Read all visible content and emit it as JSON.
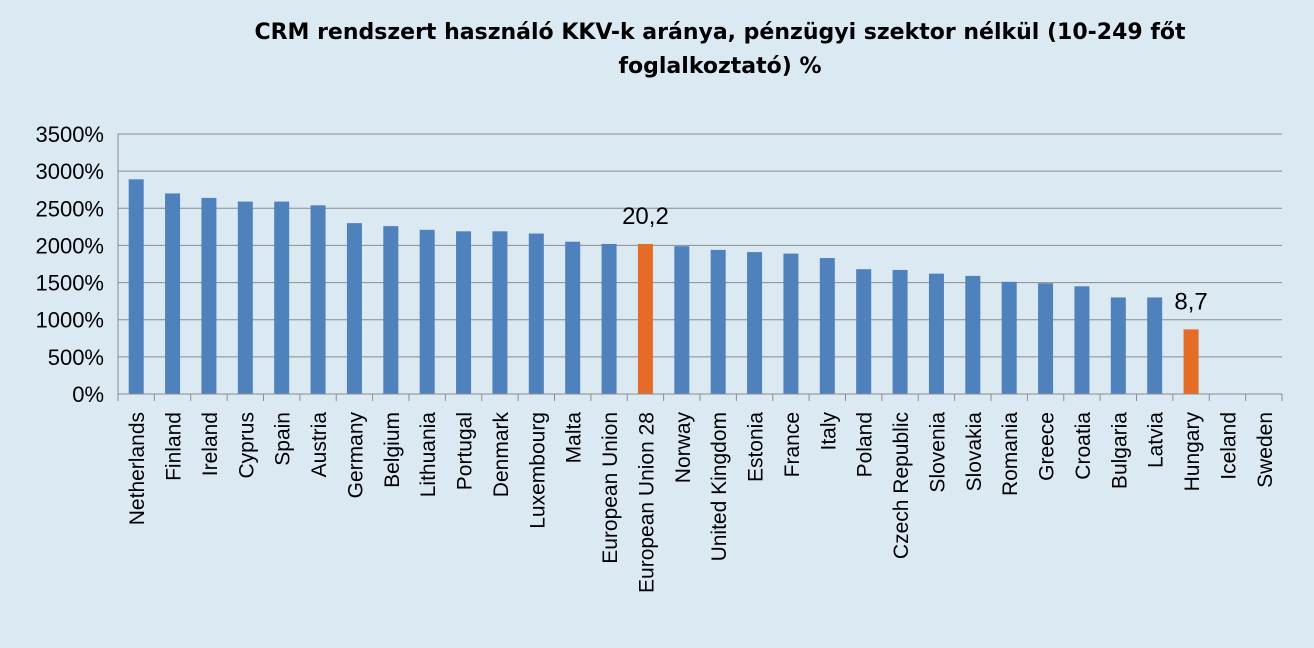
{
  "chart_data": {
    "type": "bar",
    "title": "CRM rendszert használó KKV-k aránya, pénzügyi szektor nélkül (10-249 főt foglalkoztató) %",
    "xlabel": "",
    "ylabel": "",
    "ylim": [
      0,
      3500
    ],
    "yticks": [
      "0%",
      "500%",
      "1000%",
      "1500%",
      "2000%",
      "2500%",
      "3000%",
      "3500%"
    ],
    "grid": true,
    "categories": [
      "Netherlands",
      "Finland",
      "Ireland",
      "Cyprus",
      "Spain",
      "Austria",
      "Germany",
      "Belgium",
      "Lithuania",
      "Portugal",
      "Denmark",
      "Luxembourg",
      "Malta",
      "European Union",
      "European Union 28",
      "Norway",
      "United Kingdom",
      "Estonia",
      "France",
      "Italy",
      "Poland",
      "Czech Republic",
      "Slovenia",
      "Slovakia",
      "Romania",
      "Greece",
      "Croatia",
      "Bulgaria",
      "Latvia",
      "Hungary",
      "Iceland",
      "Sweden"
    ],
    "values": [
      2890,
      2700,
      2640,
      2590,
      2590,
      2540,
      2300,
      2260,
      2210,
      2190,
      2190,
      2160,
      2050,
      2020,
      2020,
      1990,
      1940,
      1910,
      1890,
      1830,
      1680,
      1670,
      1620,
      1590,
      1510,
      1490,
      1450,
      1300,
      1300,
      870,
      0,
      0
    ],
    "highlight_categories": [
      "European Union 28",
      "Hungary"
    ],
    "data_labels": [
      {
        "category": "European Union 28",
        "text": "20,2"
      },
      {
        "category": "Hungary",
        "text": "8,7"
      }
    ],
    "colors": {
      "bar": "#4f81bd",
      "highlight": "#e46c26",
      "grid": "#8c8c8c",
      "background": "#dbe9f2"
    }
  }
}
